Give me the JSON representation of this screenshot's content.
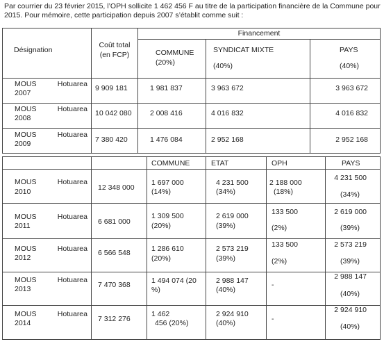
{
  "intro": {
    "line1": "Par courrier du 23 février 2015, l’OPH sollicite 1 462 456 F au titre de la participation financière de la Commune pour",
    "line2": "2015. Pour mémoire, cette participation depuis 2007 s’établit comme suit :"
  },
  "table1": {
    "header": {
      "designation": "Désignation",
      "cout_total_line1": "Coût total",
      "cout_total_line2": "(en FCP)",
      "financement": "Financement",
      "commune": "COMMUNE",
      "commune_pct": "(20%)",
      "syndicat": "SYNDICAT MIXTE",
      "syndicat_pct": "(40%)",
      "pays": "PAYS",
      "pays_pct": "(40%)"
    },
    "rows": [
      {
        "name": "MOUS",
        "place": "Hotuarea",
        "year": "2007",
        "total": "9 909 181",
        "commune": "1 981 837",
        "syndicat": "3 963 672",
        "pays": "3 963 672"
      },
      {
        "name": "MOUS",
        "place": "Hotuarea",
        "year": "2008",
        "total": "10 042 080",
        "commune": "2 008 416",
        "syndicat": "4 016 832",
        "pays": "4 016 832"
      },
      {
        "name": "MOUS",
        "place": "Hotuarea",
        "year": "2009",
        "total": "7 380 420",
        "commune": "1 476 084",
        "syndicat": "2 952 168",
        "pays": "2 952 168"
      }
    ]
  },
  "table2": {
    "header": {
      "commune": "COMMUNE",
      "etat": "ETAT",
      "oph": "OPH",
      "pays": "PAYS"
    },
    "rows": [
      {
        "name": "MOUS",
        "place": "Hotuarea",
        "year": "2010",
        "total": "12 348 000",
        "commune_a": "1 697 000",
        "commune_b": "(14%)",
        "etat_a": "4 231 500",
        "etat_b": "(34%)",
        "oph_a": "2 188 000",
        "oph_b": "(18%)",
        "pays_a": "4 231 500",
        "pays_b": "(34%)"
      },
      {
        "name": "MOUS",
        "place": "Hotuarea",
        "year": "2011",
        "total": "6 681 000",
        "commune_a": "1 309 500",
        "commune_b": "(20%)",
        "etat_a": "2 619 000",
        "etat_b": "(39%)",
        "oph_a": "133 500",
        "oph_b": "(2%)",
        "pays_a": "2 619 000",
        "pays_b": "(39%)"
      },
      {
        "name": "MOUS",
        "place": "Hotuarea",
        "year": "2012",
        "total": "6 566 548",
        "commune_a": "1 286 610",
        "commune_b": "(20%)",
        "etat_a": "2 573 219",
        "etat_b": "(39%)",
        "oph_a": "133 500",
        "oph_b": "(2%)",
        "pays_a": "2 573 219",
        "pays_b": "(39%)"
      },
      {
        "name": "MOUS",
        "place": "Hotuarea",
        "year": "2013",
        "total": "7 470 368",
        "commune_a": "1 494 074 (20",
        "commune_b": "%)",
        "etat_a": "2 988 147",
        "etat_b": "(40%)",
        "oph_a": "-",
        "oph_b": "",
        "pays_a": "2 988 147",
        "pays_b": "(40%)"
      },
      {
        "name": "MOUS",
        "place": "Hotuarea",
        "year": "2014",
        "total": "7 312 276",
        "commune_a": "1 462",
        "commune_b": "456 (20%)",
        "etat_a": "2 924 910",
        "etat_b": "(40%)",
        "oph_a": "-",
        "oph_b": "",
        "pays_a": "2 924 910",
        "pays_b": "(40%)"
      }
    ]
  }
}
